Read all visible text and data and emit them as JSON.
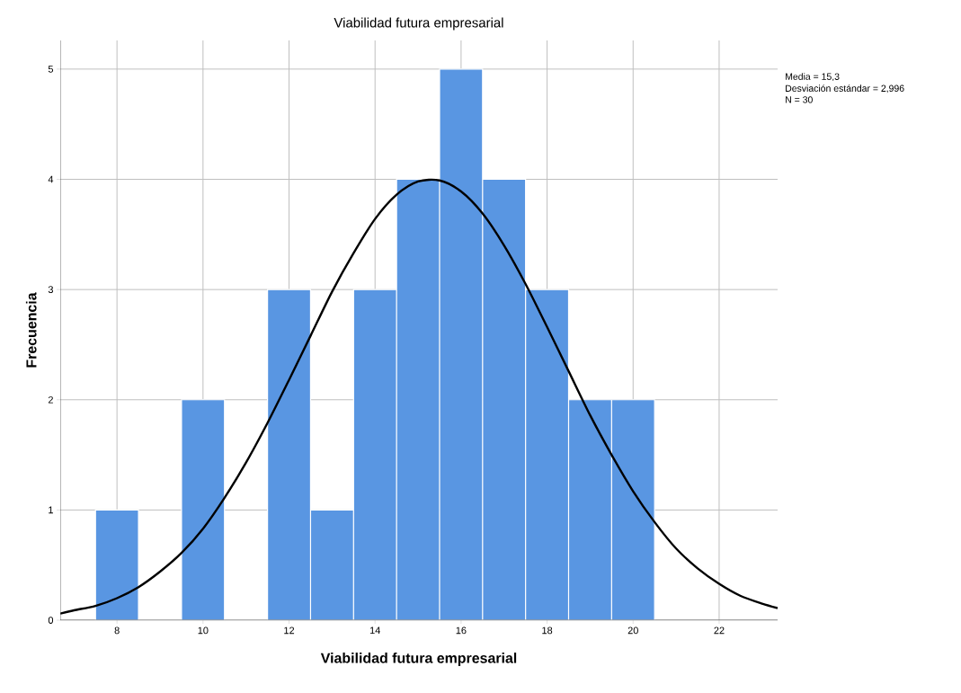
{
  "chart_data": {
    "type": "histogram",
    "title": "Viabilidad futura empresarial",
    "xlabel": "Viabilidad futura empresarial",
    "ylabel": "Frecuencia",
    "bins": [
      7.5,
      8.5,
      9.5,
      10.5,
      11.5,
      12.5,
      13.5,
      14.5,
      15.5,
      16.5,
      17.5,
      18.5,
      19.5,
      20.5
    ],
    "values": [
      1,
      0,
      2,
      0,
      3,
      1,
      3,
      4,
      5,
      4,
      3,
      2,
      2
    ],
    "color": "#5996e2",
    "xlim": [
      6.68,
      23.36
    ],
    "ylim": [
      0,
      5.26
    ],
    "xticks": [
      8,
      10,
      12,
      14,
      16,
      18,
      20,
      22
    ],
    "yticks": [
      0,
      1,
      2,
      3,
      4,
      5
    ],
    "grid": true,
    "annotations": [
      "Media = 15,3",
      "Desviación estándar = 2,996",
      "N = 30"
    ],
    "series": [
      {
        "type": "line",
        "color": "#000000",
        "x": [
          6.68,
          7,
          7.5,
          8,
          8.5,
          9,
          9.5,
          10,
          10.5,
          11,
          11.5,
          12,
          12.5,
          13,
          13.5,
          14,
          14.5,
          15,
          15.5,
          16,
          16.5,
          17,
          17.5,
          18,
          18.5,
          19,
          19.5,
          20,
          20.5,
          21,
          21.5,
          22,
          22.5,
          23,
          23.36
        ],
        "values": [
          0.06,
          0.09,
          0.13,
          0.2,
          0.3,
          0.44,
          0.61,
          0.83,
          1.11,
          1.43,
          1.79,
          2.18,
          2.58,
          2.98,
          3.33,
          3.64,
          3.86,
          3.98,
          3.99,
          3.89,
          3.69,
          3.4,
          3.05,
          2.66,
          2.26,
          1.86,
          1.5,
          1.17,
          0.89,
          0.65,
          0.47,
          0.33,
          0.22,
          0.15,
          0.11
        ]
      }
    ]
  }
}
